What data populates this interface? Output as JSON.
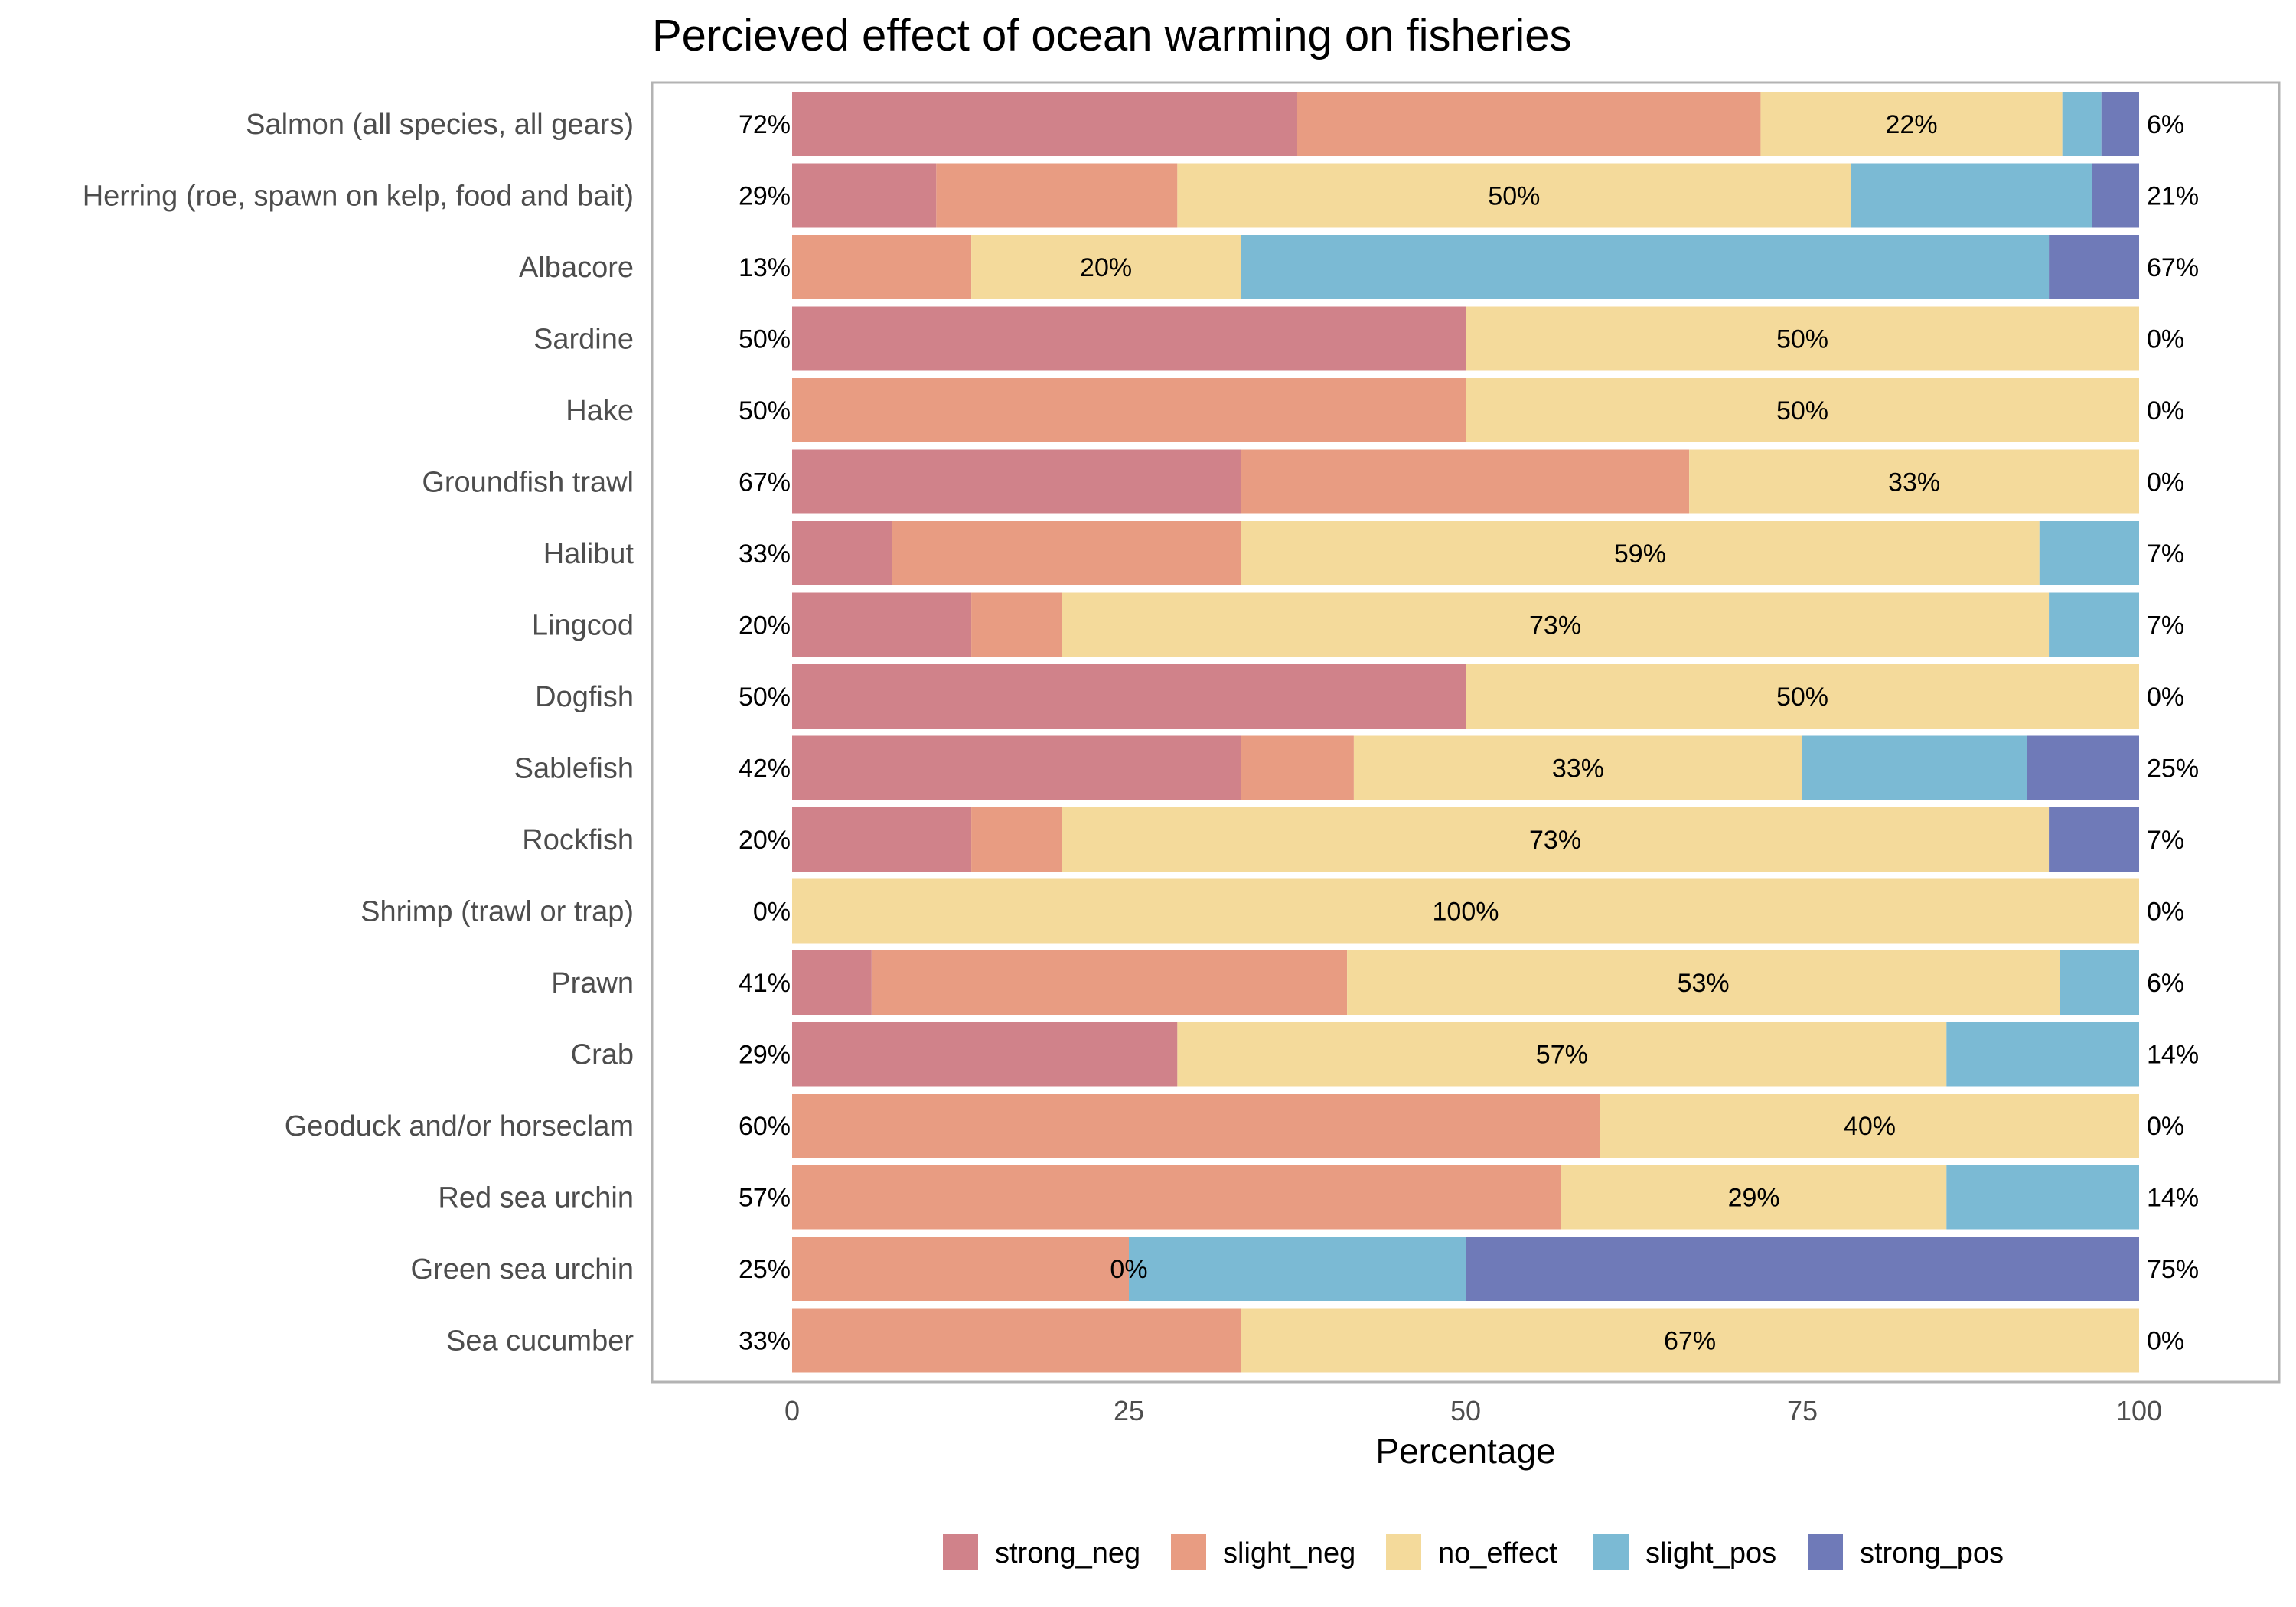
{
  "chart_data": {
    "type": "bar",
    "orientation": "horizontal",
    "stacked": true,
    "title": "Percieved effect of ocean warming on fisheries",
    "xlabel": "Percentage",
    "ylabel": "",
    "xlim": [
      0,
      100
    ],
    "xticks": [
      "0",
      "25",
      "50",
      "75",
      "100"
    ],
    "legend_position": "bottom",
    "grid": false,
    "series": [
      {
        "name": "strong_neg",
        "color": "#d0828a"
      },
      {
        "name": "slight_neg",
        "color": "#e89c82"
      },
      {
        "name": "no_effect",
        "color": "#f4da9b"
      },
      {
        "name": "slight_pos",
        "color": "#7bbad4"
      },
      {
        "name": "strong_pos",
        "color": "#6f7ab8"
      }
    ],
    "categories": [
      "Salmon (all species, all gears)",
      "Herring (roe, spawn on kelp, food and bait)",
      "Albacore",
      "Sardine",
      "Hake",
      "Groundfish trawl",
      "Halibut",
      "Lingcod",
      "Dogfish",
      "Sablefish",
      "Rockfish",
      "Shrimp (trawl or trap)",
      "Prawn",
      "Crab",
      "Geoduck and/or horseclam",
      "Red sea urchin",
      "Green sea urchin",
      "Sea cucumber"
    ],
    "values": [
      [
        37.5,
        34.4,
        22.4,
        2.9,
        2.8
      ],
      [
        10.7,
        17.9,
        50.0,
        17.9,
        3.5
      ],
      [
        0,
        13.3,
        20.0,
        60.0,
        6.7
      ],
      [
        50,
        0,
        50,
        0,
        0
      ],
      [
        0,
        50,
        50,
        0,
        0
      ],
      [
        33.3,
        33.3,
        33.4,
        0,
        0
      ],
      [
        7.4,
        25.9,
        59.3,
        7.4,
        0
      ],
      [
        13.3,
        6.7,
        73.3,
        6.7,
        0
      ],
      [
        50,
        0,
        50,
        0,
        0
      ],
      [
        33.3,
        8.4,
        33.3,
        16.7,
        8.3
      ],
      [
        13.3,
        6.7,
        73.3,
        0,
        6.7
      ],
      [
        0,
        0,
        100,
        0,
        0
      ],
      [
        5.9,
        35.3,
        52.9,
        5.9,
        0
      ],
      [
        28.6,
        0,
        57.1,
        14.3,
        0
      ],
      [
        0,
        60,
        40,
        0,
        0
      ],
      [
        0,
        57.1,
        28.6,
        14.3,
        0
      ],
      [
        0,
        25,
        0,
        25,
        50
      ],
      [
        0,
        33.3,
        66.7,
        0,
        0
      ]
    ],
    "left_labels": [
      "72%",
      "29%",
      "13%",
      "50%",
      "50%",
      "67%",
      "33%",
      "20%",
      "50%",
      "42%",
      "20%",
      "0%",
      "41%",
      "29%",
      "60%",
      "57%",
      "25%",
      "33%"
    ],
    "mid_labels": [
      "22%",
      "50%",
      "20%",
      "50%",
      "50%",
      "33%",
      "59%",
      "73%",
      "50%",
      "33%",
      "73%",
      "100%",
      "53%",
      "57%",
      "40%",
      "29%",
      "0%",
      "67%"
    ],
    "right_labels": [
      "6%",
      "21%",
      "67%",
      "0%",
      "0%",
      "0%",
      "7%",
      "7%",
      "0%",
      "25%",
      "7%",
      "0%",
      "6%",
      "14%",
      "0%",
      "14%",
      "75%",
      "0%"
    ]
  }
}
